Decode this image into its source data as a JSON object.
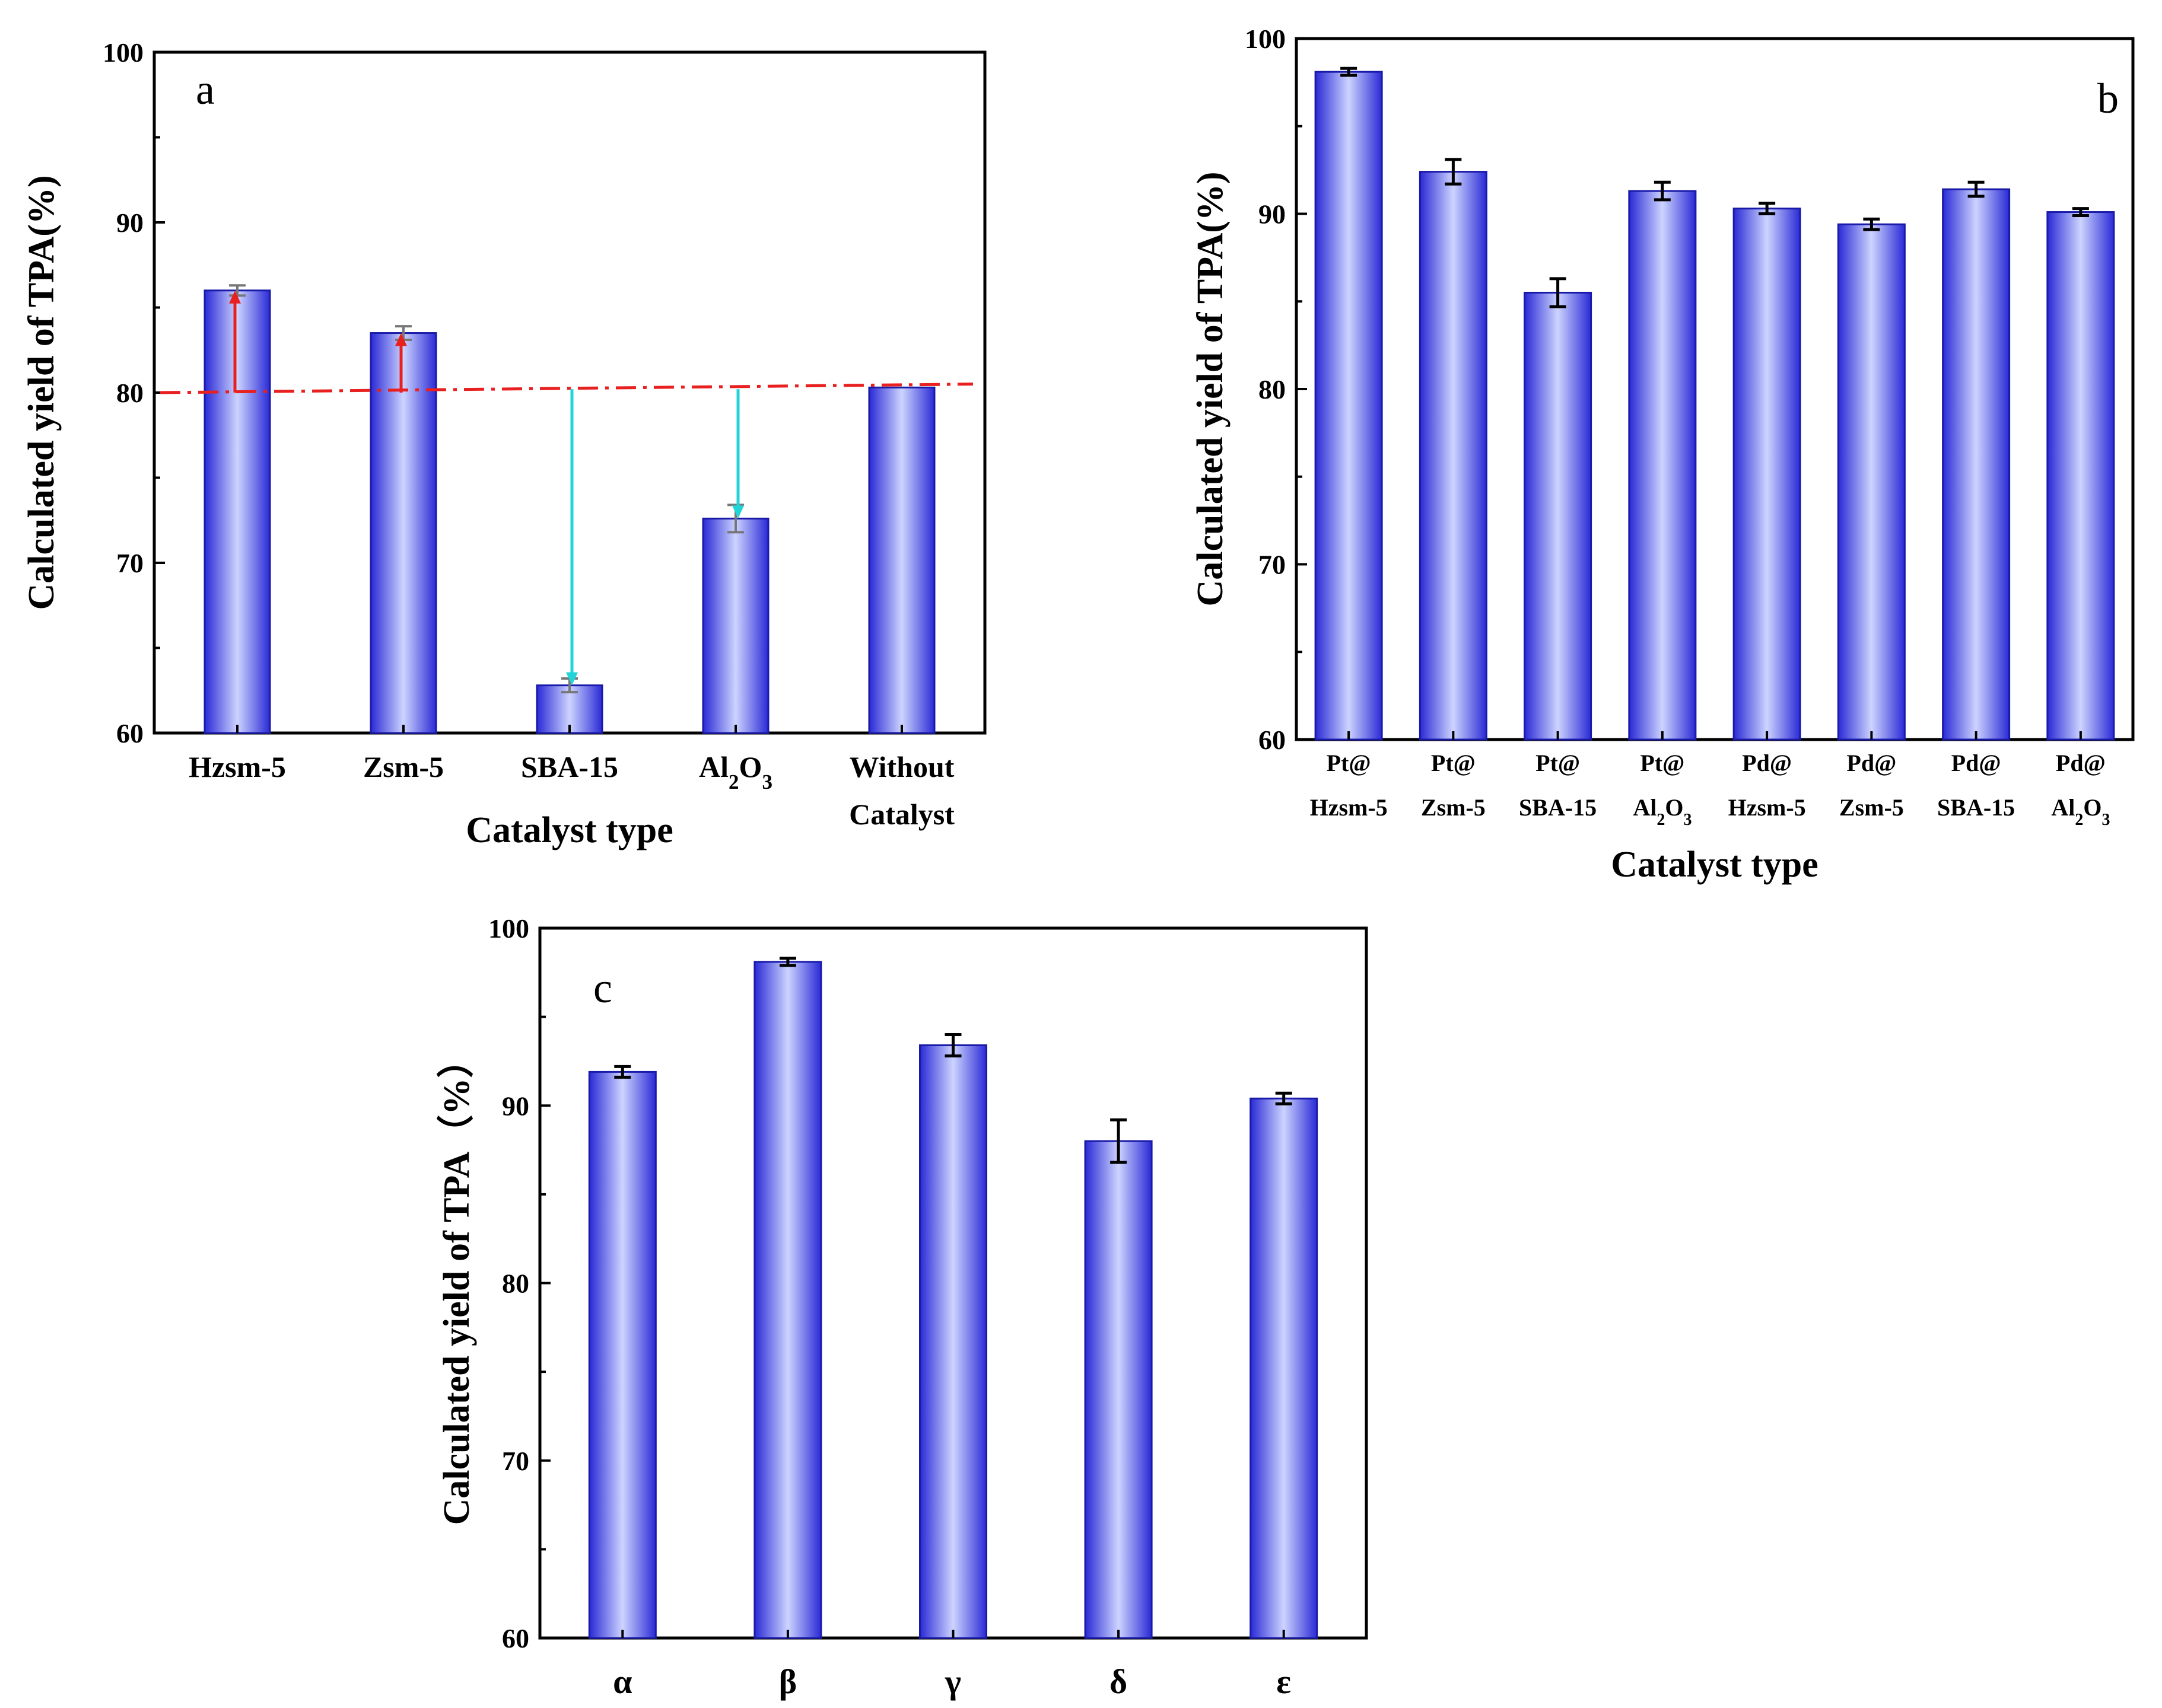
{
  "chart_data": [
    {
      "panel": "a",
      "type": "bar",
      "xlabel": "Catalyst type",
      "ylabel": "Calculated yield of TPA(%)",
      "ylim": [
        60,
        100
      ],
      "yticks": [
        "60",
        "70",
        "80",
        "90",
        "100"
      ],
      "categories": [
        [
          "Hzsm-5"
        ],
        [
          "Zsm-5"
        ],
        [
          "SBA-15"
        ],
        [
          "Al",
          "2",
          "O",
          "3"
        ],
        [
          "Without",
          "Catalyst"
        ]
      ],
      "values": [
        86.0,
        83.5,
        62.8,
        72.6,
        80.3
      ],
      "errors": [
        0.3,
        0.4,
        0.4,
        0.8,
        0.0
      ],
      "reference_line": {
        "y_start": 80.0,
        "y_end": 80.5,
        "style": "dash-dot",
        "color": "#e82020"
      },
      "arrows": [
        {
          "category": 0,
          "from": 80.0,
          "to": 86.0,
          "color": "#e82020"
        },
        {
          "category": 1,
          "from": 80.0,
          "to": 83.5,
          "color": "#e82020"
        },
        {
          "category": 2,
          "from": 80.2,
          "to": 62.8,
          "color": "#22d3d8"
        },
        {
          "category": 3,
          "from": 80.2,
          "to": 72.6,
          "color": "#22d3d8"
        }
      ],
      "grid": false
    },
    {
      "panel": "b",
      "type": "bar",
      "xlabel": "Catalyst type",
      "ylabel": "Calculated yield of TPA(%)",
      "ylim": [
        60,
        100
      ],
      "yticks": [
        "60",
        "70",
        "80",
        "90",
        "100"
      ],
      "categories": [
        [
          "Pt@",
          "Hzsm-5"
        ],
        [
          "Pt@",
          "Zsm-5"
        ],
        [
          "Pt@",
          "SBA-15"
        ],
        [
          "Pt@",
          "Al",
          "2",
          "O",
          "3"
        ],
        [
          "Pd@",
          "Hzsm-5"
        ],
        [
          "Pd@",
          "Zsm-5"
        ],
        [
          "Pd@",
          "SBA-15"
        ],
        [
          "Pd@",
          "Al",
          "2",
          "O",
          "3"
        ]
      ],
      "values": [
        98.1,
        92.4,
        85.5,
        91.3,
        90.3,
        89.4,
        91.4,
        90.1
      ],
      "errors": [
        0.2,
        0.7,
        0.8,
        0.5,
        0.3,
        0.3,
        0.4,
        0.2
      ],
      "grid": false
    },
    {
      "panel": "c",
      "type": "bar",
      "xlabel": "",
      "ylabel": "Calculated yield of TPA（%）",
      "ylim": [
        60,
        100
      ],
      "yticks": [
        "60",
        "70",
        "80",
        "90",
        "100"
      ],
      "categories": [
        [
          "α"
        ],
        [
          "β"
        ],
        [
          "γ"
        ],
        [
          "δ"
        ],
        [
          "ε"
        ]
      ],
      "values": [
        91.9,
        98.1,
        93.4,
        88.0,
        90.4
      ],
      "errors": [
        0.3,
        0.2,
        0.6,
        1.2,
        0.3
      ],
      "grid": false
    }
  ],
  "colors": {
    "bar_edge": "#2020c8",
    "bar_center": "#c8d0ff",
    "bar_dark": "#3838e0"
  }
}
